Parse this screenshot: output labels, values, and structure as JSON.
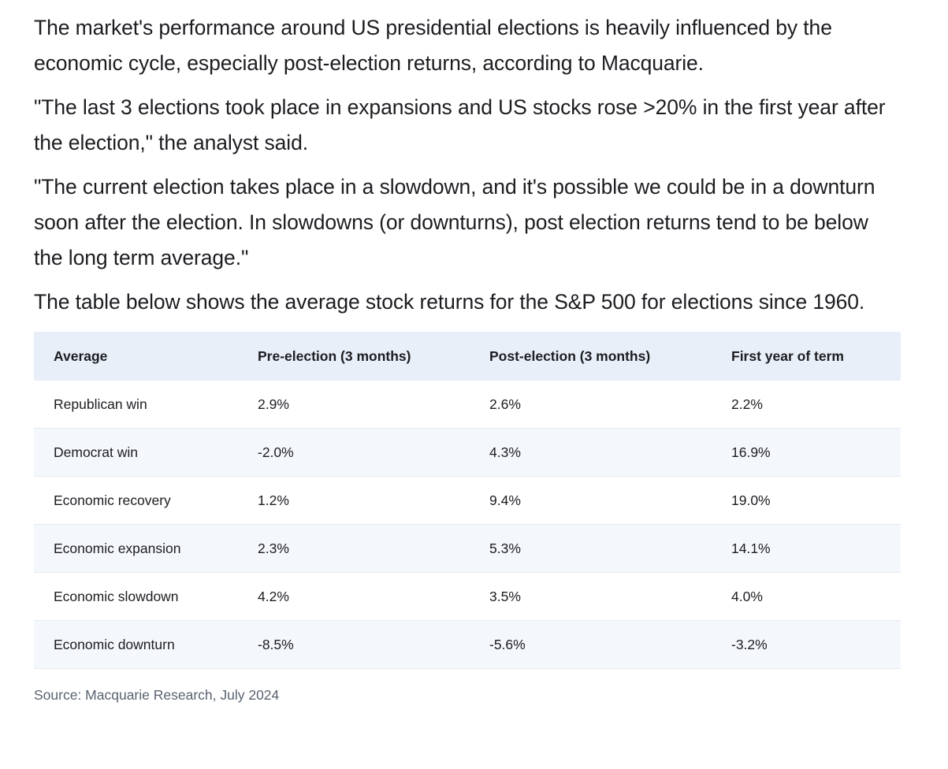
{
  "paragraphs": [
    "The market's performance around US presidential elections is heavily influenced by the economic cycle, especially post-election returns, according to Macquarie.",
    "\"The last 3 elections took place in expansions and US stocks rose >20% in the first year after the election,\" the analyst said.",
    "\"The current election takes place in a slowdown, and it's possible we could be in a downturn soon after the election. In slowdowns (or downturns), post election returns tend to be below the long term average.\"",
    "The table below shows the average stock returns for the S&P 500 for elections since 1960."
  ],
  "table": {
    "headers": [
      "Average",
      "Pre-election (3 months)",
      "Post-election (3 months)",
      "First year of term"
    ],
    "rows": [
      [
        "Republican win",
        "2.9%",
        "2.6%",
        "2.2%"
      ],
      [
        "Democrat win",
        "-2.0%",
        "4.3%",
        "16.9%"
      ],
      [
        "Economic recovery",
        "1.2%",
        "9.4%",
        "19.0%"
      ],
      [
        "Economic expansion",
        "2.3%",
        "5.3%",
        "14.1%"
      ],
      [
        "Economic slowdown",
        "4.2%",
        "3.5%",
        "4.0%"
      ],
      [
        "Economic downturn",
        "-8.5%",
        "-5.6%",
        "-3.2%"
      ]
    ]
  },
  "source": "Source: Macquarie Research, July 2024",
  "colors": {
    "header_bg": "#e8eff9",
    "alt_row_bg": "#f4f7fb",
    "text": "#1c1d21",
    "source_text": "#5a6270"
  }
}
